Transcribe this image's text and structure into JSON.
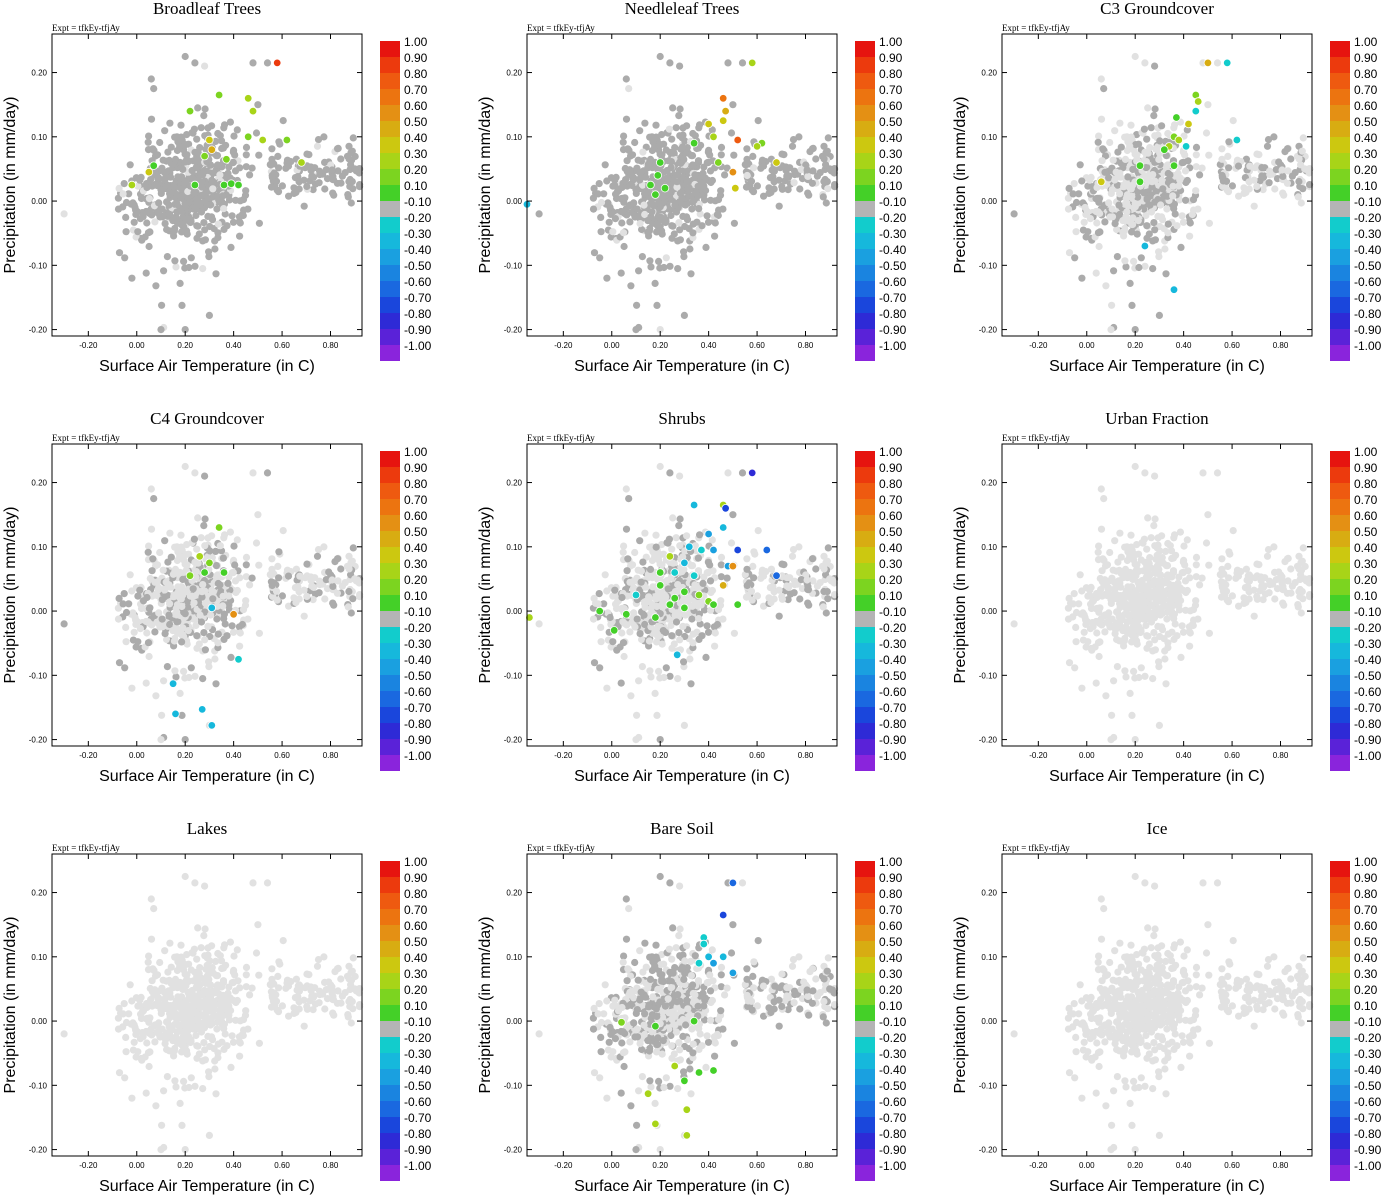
{
  "chart_data": {
    "type": "scatter",
    "experiment_label": "Expt = tfkEy-tfjAy",
    "xlabel": "Surface Air Temperature (in C)",
    "ylabel": "Precipitation (in mm/day)",
    "xlim": [
      -0.35,
      0.93
    ],
    "ylim": [
      -0.21,
      0.26
    ],
    "x_ticks": [
      "-0.20",
      "0.00",
      "0.20",
      "0.40",
      "0.60",
      "0.80"
    ],
    "y_ticks": [
      "0.20",
      "0.10",
      "0.00",
      "-0.10",
      "-0.20"
    ],
    "colorbar": {
      "labels": [
        "1.00",
        "0.90",
        "0.80",
        "0.70",
        "0.60",
        "0.50",
        "0.40",
        "0.30",
        "0.20",
        "0.10",
        "-0.10",
        "-0.20",
        "-0.30",
        "-0.40",
        "-0.50",
        "-0.60",
        "-0.70",
        "-0.80",
        "-0.90",
        "-1.00"
      ],
      "colors": [
        "#e6140f",
        "#ec3a0d",
        "#ee5a10",
        "#ec7410",
        "#e49014",
        "#d8ac12",
        "#ccc810",
        "#a8d418",
        "#7cd420",
        "#44d028",
        "#b4b4b4",
        "#12cccc",
        "#16b8dc",
        "#1aa0e0",
        "#1a84e0",
        "#1a68e0",
        "#1a46dc",
        "#2e2ad6",
        "#5a22d8",
        "#8a24dc"
      ]
    },
    "point_colors": {
      "background": "#e1e1e1",
      "neutral": "#ababab"
    },
    "panels": [
      {
        "title": "Broadleaf Trees",
        "colored_points": [
          {
            "x": 0.58,
            "y": 0.215,
            "c": "#ec3a0d"
          },
          {
            "x": 0.34,
            "y": 0.165,
            "c": "#7cd420"
          },
          {
            "x": 0.46,
            "y": 0.16,
            "c": "#a8d418"
          },
          {
            "x": 0.48,
            "y": 0.14,
            "c": "#a8d418"
          },
          {
            "x": 0.22,
            "y": 0.14,
            "c": "#7cd420"
          },
          {
            "x": 0.52,
            "y": 0.095,
            "c": "#a8d418"
          },
          {
            "x": 0.46,
            "y": 0.1,
            "c": "#7cd420"
          },
          {
            "x": 0.62,
            "y": 0.095,
            "c": "#7cd420"
          },
          {
            "x": 0.3,
            "y": 0.095,
            "c": "#ccc810"
          },
          {
            "x": 0.31,
            "y": 0.08,
            "c": "#d8ac12"
          },
          {
            "x": 0.37,
            "y": 0.065,
            "c": "#7cd420"
          },
          {
            "x": 0.28,
            "y": 0.07,
            "c": "#7cd420"
          },
          {
            "x": 0.68,
            "y": 0.06,
            "c": "#a8d418"
          },
          {
            "x": 0.07,
            "y": 0.055,
            "c": "#44d028"
          },
          {
            "x": 0.05,
            "y": 0.045,
            "c": "#ccc810"
          },
          {
            "x": -0.02,
            "y": 0.025,
            "c": "#a8d418"
          },
          {
            "x": 0.24,
            "y": 0.025,
            "c": "#44d028"
          },
          {
            "x": 0.36,
            "y": 0.025,
            "c": "#44d028"
          },
          {
            "x": 0.39,
            "y": 0.027,
            "c": "#44d028"
          },
          {
            "x": 0.42,
            "y": 0.025,
            "c": "#44d028"
          }
        ]
      },
      {
        "title": "Needleleaf Trees",
        "colored_points": [
          {
            "x": 0.58,
            "y": 0.215,
            "c": "#a8d418"
          },
          {
            "x": 0.46,
            "y": 0.16,
            "c": "#ec7410"
          },
          {
            "x": 0.47,
            "y": 0.14,
            "c": "#d8ac12"
          },
          {
            "x": 0.46,
            "y": 0.125,
            "c": "#ccc810"
          },
          {
            "x": 0.4,
            "y": 0.12,
            "c": "#ccc810"
          },
          {
            "x": 0.52,
            "y": 0.095,
            "c": "#ee5a10"
          },
          {
            "x": 0.42,
            "y": 0.1,
            "c": "#a8d418"
          },
          {
            "x": 0.62,
            "y": 0.09,
            "c": "#7cd420"
          },
          {
            "x": 0.6,
            "y": 0.085,
            "c": "#a8d418"
          },
          {
            "x": 0.34,
            "y": 0.09,
            "c": "#44d028"
          },
          {
            "x": 0.44,
            "y": 0.06,
            "c": "#7cd420"
          },
          {
            "x": 0.2,
            "y": 0.06,
            "c": "#44d028"
          },
          {
            "x": 0.68,
            "y": 0.06,
            "c": "#ccc810"
          },
          {
            "x": 0.5,
            "y": 0.045,
            "c": "#e49014"
          },
          {
            "x": 0.19,
            "y": 0.04,
            "c": "#44d028"
          },
          {
            "x": 0.16,
            "y": 0.025,
            "c": "#44d028"
          },
          {
            "x": 0.22,
            "y": 0.02,
            "c": "#44d028"
          },
          {
            "x": 0.51,
            "y": 0.02,
            "c": "#ccc810"
          },
          {
            "x": 0.18,
            "y": 0.01,
            "c": "#44d028"
          },
          {
            "x": -0.35,
            "y": -0.005,
            "c": "#16b8dc"
          }
        ]
      },
      {
        "title": "C3 Groundcover",
        "colored_points": [
          {
            "x": 0.5,
            "y": 0.215,
            "c": "#d8ac12"
          },
          {
            "x": 0.58,
            "y": 0.215,
            "c": "#12cccc"
          },
          {
            "x": 0.45,
            "y": 0.165,
            "c": "#7cd420"
          },
          {
            "x": 0.46,
            "y": 0.155,
            "c": "#a8d418"
          },
          {
            "x": 0.45,
            "y": 0.14,
            "c": "#12cccc"
          },
          {
            "x": 0.37,
            "y": 0.13,
            "c": "#44d028"
          },
          {
            "x": 0.42,
            "y": 0.12,
            "c": "#ccc810"
          },
          {
            "x": 0.36,
            "y": 0.1,
            "c": "#7cd420"
          },
          {
            "x": 0.38,
            "y": 0.095,
            "c": "#a8d418"
          },
          {
            "x": 0.34,
            "y": 0.085,
            "c": "#a8d418"
          },
          {
            "x": 0.41,
            "y": 0.085,
            "c": "#12cccc"
          },
          {
            "x": 0.62,
            "y": 0.095,
            "c": "#12cccc"
          },
          {
            "x": 0.32,
            "y": 0.08,
            "c": "#44d028"
          },
          {
            "x": 0.36,
            "y": 0.055,
            "c": "#44d028"
          },
          {
            "x": 0.22,
            "y": 0.055,
            "c": "#44d028"
          },
          {
            "x": 0.06,
            "y": 0.03,
            "c": "#ccc810"
          },
          {
            "x": 0.22,
            "y": 0.03,
            "c": "#44d028"
          },
          {
            "x": 0.24,
            "y": -0.07,
            "c": "#16b8dc"
          },
          {
            "x": 0.36,
            "y": -0.138,
            "c": "#16b8dc"
          }
        ]
      },
      {
        "title": "C4 Groundcover",
        "colored_points": [
          {
            "x": 0.34,
            "y": 0.13,
            "c": "#7cd420"
          },
          {
            "x": 0.26,
            "y": 0.085,
            "c": "#a8d418"
          },
          {
            "x": 0.3,
            "y": 0.075,
            "c": "#7cd420"
          },
          {
            "x": 0.28,
            "y": 0.06,
            "c": "#44d028"
          },
          {
            "x": 0.36,
            "y": 0.06,
            "c": "#44d028"
          },
          {
            "x": 0.22,
            "y": 0.055,
            "c": "#7cd420"
          },
          {
            "x": 0.31,
            "y": 0.005,
            "c": "#16b8dc"
          },
          {
            "x": 0.4,
            "y": -0.005,
            "c": "#e49014"
          },
          {
            "x": 0.42,
            "y": -0.075,
            "c": "#12cccc"
          },
          {
            "x": 0.15,
            "y": -0.113,
            "c": "#16b8dc"
          },
          {
            "x": 0.16,
            "y": -0.16,
            "c": "#16b8dc"
          },
          {
            "x": 0.27,
            "y": -0.153,
            "c": "#16b8dc"
          },
          {
            "x": 0.31,
            "y": -0.178,
            "c": "#16b8dc"
          }
        ]
      },
      {
        "title": "Shrubs",
        "colored_points": [
          {
            "x": 0.58,
            "y": 0.215,
            "c": "#2e2ad6"
          },
          {
            "x": 0.46,
            "y": 0.165,
            "c": "#a8d418"
          },
          {
            "x": 0.47,
            "y": 0.16,
            "c": "#1a46dc"
          },
          {
            "x": 0.34,
            "y": 0.165,
            "c": "#16b8dc"
          },
          {
            "x": 0.46,
            "y": 0.13,
            "c": "#16b8dc"
          },
          {
            "x": 0.4,
            "y": 0.12,
            "c": "#1aa0e0"
          },
          {
            "x": 0.52,
            "y": 0.095,
            "c": "#1a46dc"
          },
          {
            "x": 0.64,
            "y": 0.095,
            "c": "#1a68e0"
          },
          {
            "x": 0.32,
            "y": 0.1,
            "c": "#16b8dc"
          },
          {
            "x": 0.37,
            "y": 0.095,
            "c": "#12cccc"
          },
          {
            "x": 0.42,
            "y": 0.095,
            "c": "#1aa0e0"
          },
          {
            "x": 0.24,
            "y": 0.085,
            "c": "#a8d418"
          },
          {
            "x": 0.48,
            "y": 0.07,
            "c": "#1aa0e0"
          },
          {
            "x": 0.5,
            "y": 0.07,
            "c": "#e49014"
          },
          {
            "x": 0.3,
            "y": 0.075,
            "c": "#16b8dc"
          },
          {
            "x": 0.2,
            "y": 0.06,
            "c": "#44d028"
          },
          {
            "x": 0.26,
            "y": 0.06,
            "c": "#12cccc"
          },
          {
            "x": 0.68,
            "y": 0.055,
            "c": "#1a68e0"
          },
          {
            "x": 0.34,
            "y": 0.055,
            "c": "#12cccc"
          },
          {
            "x": 0.46,
            "y": 0.04,
            "c": "#d8ac12"
          },
          {
            "x": 0.2,
            "y": 0.04,
            "c": "#44d028"
          },
          {
            "x": 0.3,
            "y": 0.03,
            "c": "#44d028"
          },
          {
            "x": 0.36,
            "y": 0.025,
            "c": "#7cd420"
          },
          {
            "x": 0.1,
            "y": 0.025,
            "c": "#12cccc"
          },
          {
            "x": 0.26,
            "y": 0.02,
            "c": "#44d028"
          },
          {
            "x": 0.4,
            "y": 0.015,
            "c": "#7cd420"
          },
          {
            "x": 0.42,
            "y": 0.01,
            "c": "#44d028"
          },
          {
            "x": 0.52,
            "y": 0.01,
            "c": "#44d028"
          },
          {
            "x": 0.24,
            "y": 0.01,
            "c": "#44d028"
          },
          {
            "x": 0.3,
            "y": 0.005,
            "c": "#44d028"
          },
          {
            "x": -0.05,
            "y": 0.0,
            "c": "#44d028"
          },
          {
            "x": 0.06,
            "y": -0.005,
            "c": "#44d028"
          },
          {
            "x": 0.18,
            "y": -0.01,
            "c": "#44d028"
          },
          {
            "x": -0.34,
            "y": -0.01,
            "c": "#a8d418"
          },
          {
            "x": 0.01,
            "y": -0.03,
            "c": "#44d028"
          },
          {
            "x": 0.27,
            "y": -0.068,
            "c": "#16b8dc"
          }
        ]
      },
      {
        "title": "Urban Fraction",
        "colored_points": []
      },
      {
        "title": "Lakes",
        "colored_points": []
      },
      {
        "title": "Bare Soil",
        "colored_points": [
          {
            "x": 0.5,
            "y": 0.215,
            "c": "#1a68e0"
          },
          {
            "x": 0.46,
            "y": 0.165,
            "c": "#1a46dc"
          },
          {
            "x": 0.38,
            "y": 0.13,
            "c": "#12cccc"
          },
          {
            "x": 0.38,
            "y": 0.12,
            "c": "#12cccc"
          },
          {
            "x": 0.4,
            "y": 0.1,
            "c": "#16b8dc"
          },
          {
            "x": 0.46,
            "y": 0.1,
            "c": "#16b8dc"
          },
          {
            "x": 0.42,
            "y": 0.09,
            "c": "#1aa0e0"
          },
          {
            "x": 0.36,
            "y": 0.09,
            "c": "#12cccc"
          },
          {
            "x": 0.5,
            "y": 0.075,
            "c": "#1aa0e0"
          },
          {
            "x": 0.04,
            "y": -0.002,
            "c": "#7cd420"
          },
          {
            "x": 0.34,
            "y": 0.0,
            "c": "#44d028"
          },
          {
            "x": 0.18,
            "y": -0.008,
            "c": "#44d028"
          },
          {
            "x": 0.26,
            "y": -0.07,
            "c": "#a8d418"
          },
          {
            "x": 0.36,
            "y": -0.08,
            "c": "#44d028"
          },
          {
            "x": 0.42,
            "y": -0.077,
            "c": "#44d028"
          },
          {
            "x": 0.3,
            "y": -0.093,
            "c": "#44d028"
          },
          {
            "x": 0.15,
            "y": -0.113,
            "c": "#a8d418"
          },
          {
            "x": 0.31,
            "y": -0.138,
            "c": "#a8d418"
          },
          {
            "x": 0.18,
            "y": -0.16,
            "c": "#a8d418"
          },
          {
            "x": 0.31,
            "y": -0.178,
            "c": "#a8d418"
          }
        ]
      },
      {
        "title": "Ice",
        "colored_points": []
      }
    ]
  }
}
